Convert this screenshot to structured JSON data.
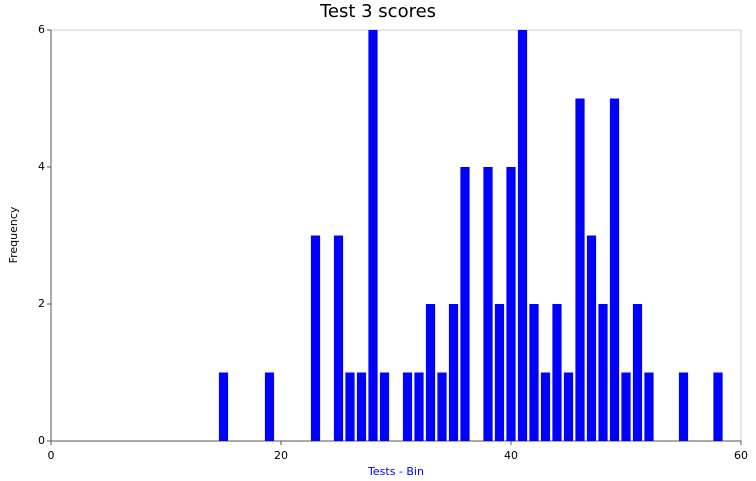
{
  "chart_data": {
    "type": "bar",
    "title": "Test 3 scores",
    "x_label": "Tests - Bin",
    "y_label": "Frequency",
    "x": [
      15,
      19,
      23,
      25,
      26,
      27,
      28,
      29,
      31,
      32,
      33,
      34,
      35,
      36,
      38,
      39,
      40,
      41,
      42,
      43,
      44,
      45,
      46,
      47,
      48,
      49,
      50,
      51,
      52,
      55,
      58
    ],
    "values": [
      1,
      1,
      3,
      3,
      1,
      1,
      6,
      1,
      1,
      1,
      2,
      1,
      2,
      4,
      4,
      2,
      4,
      6,
      2,
      1,
      2,
      1,
      5,
      3,
      2,
      5,
      1,
      2,
      1,
      1,
      1
    ],
    "color": "#0000ff",
    "xlim": [
      0,
      60
    ],
    "xticks": [
      0,
      20,
      40,
      60
    ],
    "ylim": [
      0,
      6
    ],
    "yticks": [
      0,
      2,
      4,
      6
    ],
    "grid": false
  }
}
